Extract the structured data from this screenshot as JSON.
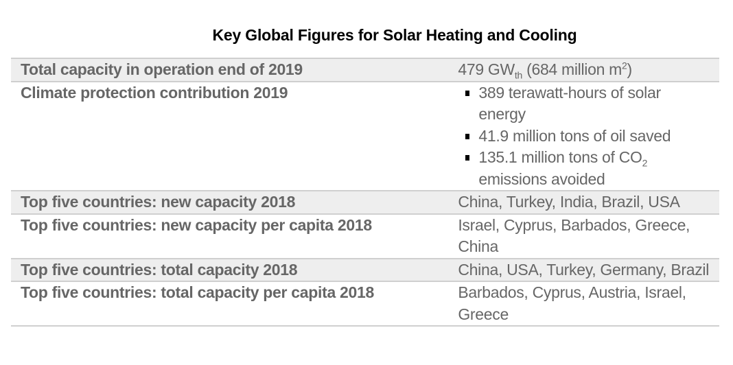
{
  "title": "Key Global Figures for Solar Heating and Cooling",
  "rows": [
    {
      "label": "Total capacity in operation end of 2019",
      "value": {
        "a": "479 GW",
        "sub": "th",
        "b": " (684 million m",
        "sup": "2",
        "c": ")"
      }
    },
    {
      "label": "Climate protection contribution 2019",
      "bullets": [
        {
          "text": "389 terawatt-hours of solar energy"
        },
        {
          "text": "41.9 million tons of oil saved"
        },
        {
          "a": "135.1 million tons of CO",
          "sub": "2",
          "b": " emissions avoided"
        }
      ]
    },
    {
      "label": "Top five countries: new capacity 2018",
      "value": "China, Turkey, India, Brazil, USA"
    },
    {
      "label": "Top five countries: new capacity per capita 2018",
      "value": "Israel, Cyprus, Barbados, Greece, China"
    },
    {
      "label": "Top five countries: total capacity 2018",
      "value": "China, USA, Turkey, Germany, Brazil"
    },
    {
      "label": "Top five countries: total capacity per capita 2018",
      "value": "Barbados, Cyprus, Austria, Israel, Greece"
    }
  ],
  "colors": {
    "shade": "#eeeeee",
    "text": "#666666",
    "rule": "#cfcfcf"
  }
}
